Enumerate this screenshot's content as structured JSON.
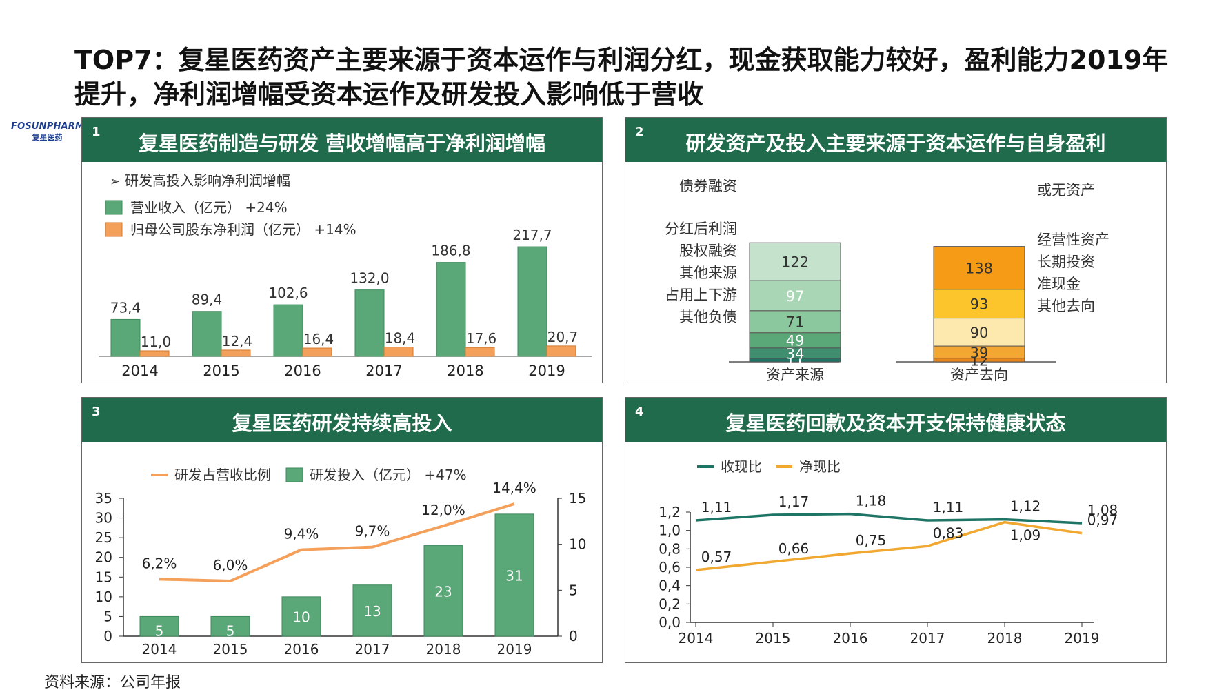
{
  "page": {
    "title": "TOP7：复星医药资产主要来源于资本运作与利润分红，现金获取能力较好，盈利能力2019年提升，净利润增幅受资本运作及研发投入影响低于营收",
    "logo_main": "FOSUNPHARMA",
    "logo_sub": "复星医药",
    "source": "资料来源：公司年报"
  },
  "colors": {
    "header": "#1f6b4c",
    "green_bar": "#5aa878",
    "orange": "#f4a05a",
    "teal": "#1e7566",
    "gold": "#f0a830"
  },
  "panels": [
    {
      "num": "1",
      "title": "复星医药制造与研发 营收增幅高于净利润增幅"
    },
    {
      "num": "2",
      "title": "研发资产及投入主要来源于资本运作与自身盈利"
    },
    {
      "num": "3",
      "title": "复星医药研发持续高投入"
    },
    {
      "num": "4",
      "title": "复星医药回款及资本开支保持健康状态"
    }
  ],
  "chart_data": [
    {
      "type": "bar",
      "subtitle": "研发高投入影响净利润增幅",
      "categories": [
        "2014",
        "2015",
        "2016",
        "2017",
        "2018",
        "2019"
      ],
      "series": [
        {
          "name": "营业收入（亿元） +24%",
          "values": [
            73.4,
            89.4,
            102.6,
            132.0,
            186.8,
            217.7
          ],
          "labels": [
            "73,4",
            "89,4",
            "102,6",
            "132,0",
            "186,8",
            "217,7"
          ]
        },
        {
          "name": "归母公司股东净利润（亿元） +14%",
          "values": [
            11.0,
            12.4,
            16.4,
            18.4,
            17.6,
            20.7
          ],
          "labels": [
            "11,0",
            "12,4",
            "16,4",
            "18,4",
            "17,6",
            "20,7"
          ]
        }
      ]
    },
    {
      "type": "bar",
      "stacked": true,
      "categories": [
        "资产来源",
        "资产去向"
      ],
      "stacks": [
        {
          "category": "资产来源",
          "segments": [
            {
              "name": "其他负债",
              "value": 11
            },
            {
              "name": "占用上下游",
              "value": 34
            },
            {
              "name": "其他来源",
              "value": 49
            },
            {
              "name": "股权融资",
              "value": 71
            },
            {
              "name": "分红后利润",
              "value": 97
            },
            {
              "name": "债券融资",
              "value": 122
            }
          ]
        },
        {
          "category": "资产去向",
          "segments": [
            {
              "name": "其他去向",
              "value": 12
            },
            {
              "name": "准现金",
              "value": 39
            },
            {
              "name": "长期投资",
              "value": 90
            },
            {
              "name": "经营性资产",
              "value": 93
            },
            {
              "name": "或无资产",
              "value": 138
            }
          ]
        }
      ]
    },
    {
      "type": "bar",
      "categories": [
        "2014",
        "2015",
        "2016",
        "2017",
        "2018",
        "2019"
      ],
      "series": [
        {
          "name": "研发投入（亿元） +47%",
          "values": [
            5,
            5,
            10,
            13,
            23,
            31
          ]
        },
        {
          "name": "研发占营收比例",
          "type": "line",
          "values": [
            6.2,
            6.0,
            9.4,
            9.7,
            12.0,
            14.4
          ],
          "labels": [
            "6,2%",
            "6,0%",
            "9,4%",
            "9,7%",
            "12,0%",
            "14,4%"
          ]
        }
      ],
      "yticks_left": [
        "35",
        "30",
        "25",
        "20",
        "15",
        "10",
        "5",
        "0"
      ],
      "yticks_right": [
        "15",
        "10",
        "5",
        "0"
      ],
      "ylim_left": [
        0,
        35
      ],
      "ylim_right": [
        0,
        15
      ]
    },
    {
      "type": "line",
      "categories": [
        "2014",
        "2015",
        "2016",
        "2017",
        "2018",
        "2019"
      ],
      "series": [
        {
          "name": "收现比",
          "values": [
            1.11,
            1.17,
            1.18,
            1.11,
            1.12,
            1.08
          ],
          "labels": [
            "1,11",
            "1,17",
            "1,18",
            "1,11",
            "1,12",
            "1,08"
          ]
        },
        {
          "name": "净现比",
          "values": [
            0.57,
            0.66,
            0.75,
            0.83,
            1.09,
            0.97
          ],
          "labels": [
            "0,57",
            "0,66",
            "0,75",
            "0,83",
            "1,09",
            "0,97"
          ]
        }
      ],
      "yticks": [
        "1,2",
        "1,0",
        "0,8",
        "0,6",
        "0,4",
        "0,2",
        "0,0"
      ],
      "ylim": [
        0,
        1.2
      ]
    }
  ]
}
